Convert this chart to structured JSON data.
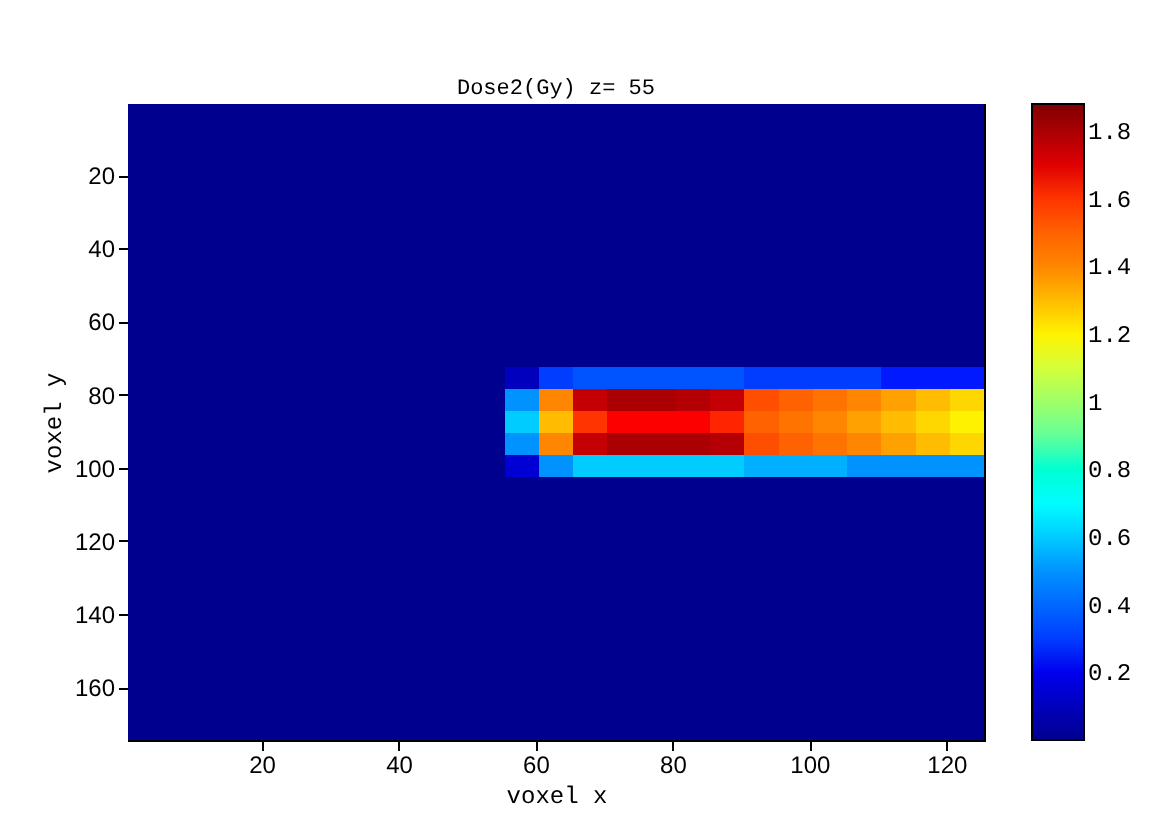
{
  "chart_data": {
    "type": "heatmap",
    "title": "Dose2(Gy) z= 55",
    "xlabel": "voxel x",
    "ylabel": "voxel y",
    "x": [
      3,
      8,
      13,
      18,
      23,
      28,
      33,
      38,
      43,
      48,
      53,
      58,
      63,
      68,
      73,
      78,
      83,
      88,
      93,
      98,
      103,
      108,
      113,
      118,
      123
    ],
    "y": [
      3.5,
      9.5,
      15.5,
      21.5,
      27.5,
      33.5,
      39.5,
      45.5,
      51.5,
      57.5,
      63.5,
      69.5,
      75.5,
      81.5,
      87.5,
      93.5,
      99.5,
      105.5,
      111.5,
      117.5,
      123.5,
      129.5,
      135.5,
      141.5,
      147.5,
      153.5,
      159.5,
      165.5,
      171.5
    ],
    "xlim": [
      0.5,
      125.5
    ],
    "xticks": [
      20,
      40,
      60,
      80,
      100,
      120
    ],
    "ylim": [
      174.5,
      0.5
    ],
    "yticks": [
      20,
      40,
      60,
      80,
      100,
      120,
      140,
      160
    ],
    "clim": [
      0,
      1.88
    ],
    "cticks": [
      0.2,
      0.4,
      0.6,
      0.8,
      1,
      1.2,
      1.4,
      1.6,
      1.8
    ],
    "grid": false,
    "cells": [
      [
        0,
        0,
        0,
        0,
        0,
        0,
        0,
        0,
        0,
        0,
        0,
        0,
        0,
        0,
        0,
        0,
        0,
        0,
        0,
        0,
        0,
        0,
        0,
        0,
        0
      ],
      [
        0,
        0,
        0,
        0,
        0,
        0,
        0,
        0,
        0,
        0,
        0,
        0,
        0,
        0,
        0,
        0,
        0,
        0,
        0,
        0,
        0,
        0,
        0,
        0,
        0
      ],
      [
        0,
        0,
        0,
        0,
        0,
        0,
        0,
        0,
        0,
        0,
        0,
        0,
        0,
        0,
        0,
        0,
        0,
        0,
        0,
        0,
        0,
        0,
        0,
        0,
        0
      ],
      [
        0,
        0,
        0,
        0,
        0,
        0,
        0,
        0,
        0,
        0,
        0,
        0,
        0,
        0,
        0,
        0,
        0,
        0,
        0,
        0,
        0,
        0,
        0,
        0,
        0
      ],
      [
        0,
        0,
        0,
        0,
        0,
        0,
        0,
        0,
        0,
        0,
        0,
        0,
        0,
        0,
        0,
        0,
        0,
        0,
        0,
        0,
        0,
        0,
        0,
        0,
        0
      ],
      [
        0,
        0,
        0,
        0,
        0,
        0,
        0,
        0,
        0,
        0,
        0,
        0,
        0,
        0,
        0,
        0,
        0,
        0,
        0,
        0,
        0,
        0,
        0,
        0,
        0
      ],
      [
        0,
        0,
        0,
        0,
        0,
        0,
        0,
        0,
        0,
        0,
        0,
        0,
        0,
        0,
        0,
        0,
        0,
        0,
        0,
        0,
        0,
        0,
        0,
        0,
        0
      ],
      [
        0,
        0,
        0,
        0,
        0,
        0,
        0,
        0,
        0,
        0,
        0,
        0,
        0,
        0,
        0,
        0,
        0,
        0,
        0,
        0,
        0,
        0,
        0,
        0,
        0
      ],
      [
        0,
        0,
        0,
        0,
        0,
        0,
        0,
        0,
        0,
        0,
        0,
        0,
        0,
        0,
        0,
        0,
        0,
        0,
        0,
        0,
        0,
        0,
        0,
        0,
        0
      ],
      [
        0,
        0,
        0,
        0,
        0,
        0,
        0,
        0,
        0,
        0,
        0,
        0,
        0,
        0,
        0,
        0,
        0,
        0,
        0,
        0,
        0,
        0,
        0,
        0,
        0
      ],
      [
        0,
        0,
        0,
        0,
        0,
        0,
        0,
        0,
        0,
        0,
        0,
        0,
        0,
        0,
        0,
        0,
        0,
        0,
        0,
        0,
        0,
        0,
        0,
        0,
        0
      ],
      [
        0,
        0,
        0,
        0,
        0,
        0,
        0,
        0,
        0,
        0,
        0,
        0,
        0,
        0,
        0,
        0,
        0,
        0,
        0,
        0,
        0,
        0,
        0,
        0,
        0
      ],
      [
        0,
        0,
        0,
        0,
        0,
        0,
        0,
        0,
        0,
        0,
        0,
        0.1,
        0.3,
        0.35,
        0.35,
        0.35,
        0.35,
        0.35,
        0.3,
        0.3,
        0.3,
        0.3,
        0.25,
        0.25,
        0.25
      ],
      [
        0,
        0,
        0,
        0,
        0,
        0,
        0,
        0,
        0,
        0,
        0,
        0.5,
        1.4,
        1.75,
        1.8,
        1.8,
        1.78,
        1.75,
        1.55,
        1.5,
        1.45,
        1.4,
        1.35,
        1.3,
        1.25
      ],
      [
        0,
        0,
        0,
        0,
        0,
        0,
        0,
        0,
        0,
        0,
        0,
        0.6,
        1.3,
        1.6,
        1.65,
        1.65,
        1.65,
        1.62,
        1.5,
        1.45,
        1.4,
        1.35,
        1.3,
        1.25,
        1.2
      ],
      [
        0,
        0,
        0,
        0,
        0,
        0,
        0,
        0,
        0,
        0,
        0,
        0.5,
        1.4,
        1.75,
        1.8,
        1.8,
        1.8,
        1.78,
        1.55,
        1.5,
        1.45,
        1.4,
        1.35,
        1.3,
        1.25
      ],
      [
        0,
        0,
        0,
        0,
        0,
        0,
        0,
        0,
        0,
        0,
        0,
        0.15,
        0.5,
        0.6,
        0.6,
        0.6,
        0.6,
        0.6,
        0.55,
        0.55,
        0.55,
        0.5,
        0.5,
        0.5,
        0.5
      ],
      [
        0,
        0,
        0,
        0,
        0,
        0,
        0,
        0,
        0,
        0,
        0,
        0,
        0,
        0,
        0,
        0,
        0,
        0,
        0,
        0,
        0,
        0,
        0,
        0,
        0
      ],
      [
        0,
        0,
        0,
        0,
        0,
        0,
        0,
        0,
        0,
        0,
        0,
        0,
        0,
        0,
        0,
        0,
        0,
        0,
        0,
        0,
        0,
        0,
        0,
        0,
        0
      ],
      [
        0,
        0,
        0,
        0,
        0,
        0,
        0,
        0,
        0,
        0,
        0,
        0,
        0,
        0,
        0,
        0,
        0,
        0,
        0,
        0,
        0,
        0,
        0,
        0,
        0
      ],
      [
        0,
        0,
        0,
        0,
        0,
        0,
        0,
        0,
        0,
        0,
        0,
        0,
        0,
        0,
        0,
        0,
        0,
        0,
        0,
        0,
        0,
        0,
        0,
        0,
        0
      ],
      [
        0,
        0,
        0,
        0,
        0,
        0,
        0,
        0,
        0,
        0,
        0,
        0,
        0,
        0,
        0,
        0,
        0,
        0,
        0,
        0,
        0,
        0,
        0,
        0,
        0
      ],
      [
        0,
        0,
        0,
        0,
        0,
        0,
        0,
        0,
        0,
        0,
        0,
        0,
        0,
        0,
        0,
        0,
        0,
        0,
        0,
        0,
        0,
        0,
        0,
        0,
        0
      ],
      [
        0,
        0,
        0,
        0,
        0,
        0,
        0,
        0,
        0,
        0,
        0,
        0,
        0,
        0,
        0,
        0,
        0,
        0,
        0,
        0,
        0,
        0,
        0,
        0,
        0
      ],
      [
        0,
        0,
        0,
        0,
        0,
        0,
        0,
        0,
        0,
        0,
        0,
        0,
        0,
        0,
        0,
        0,
        0,
        0,
        0,
        0,
        0,
        0,
        0,
        0,
        0
      ],
      [
        0,
        0,
        0,
        0,
        0,
        0,
        0,
        0,
        0,
        0,
        0,
        0,
        0,
        0,
        0,
        0,
        0,
        0,
        0,
        0,
        0,
        0,
        0,
        0,
        0
      ],
      [
        0,
        0,
        0,
        0,
        0,
        0,
        0,
        0,
        0,
        0,
        0,
        0,
        0,
        0,
        0,
        0,
        0,
        0,
        0,
        0,
        0,
        0,
        0,
        0,
        0
      ],
      [
        0,
        0,
        0,
        0,
        0,
        0,
        0,
        0,
        0,
        0,
        0,
        0,
        0,
        0,
        0,
        0,
        0,
        0,
        0,
        0,
        0,
        0,
        0,
        0,
        0
      ],
      [
        0,
        0,
        0,
        0,
        0,
        0,
        0,
        0,
        0,
        0,
        0,
        0,
        0,
        0,
        0,
        0,
        0,
        0,
        0,
        0,
        0,
        0,
        0,
        0,
        0
      ]
    ]
  }
}
